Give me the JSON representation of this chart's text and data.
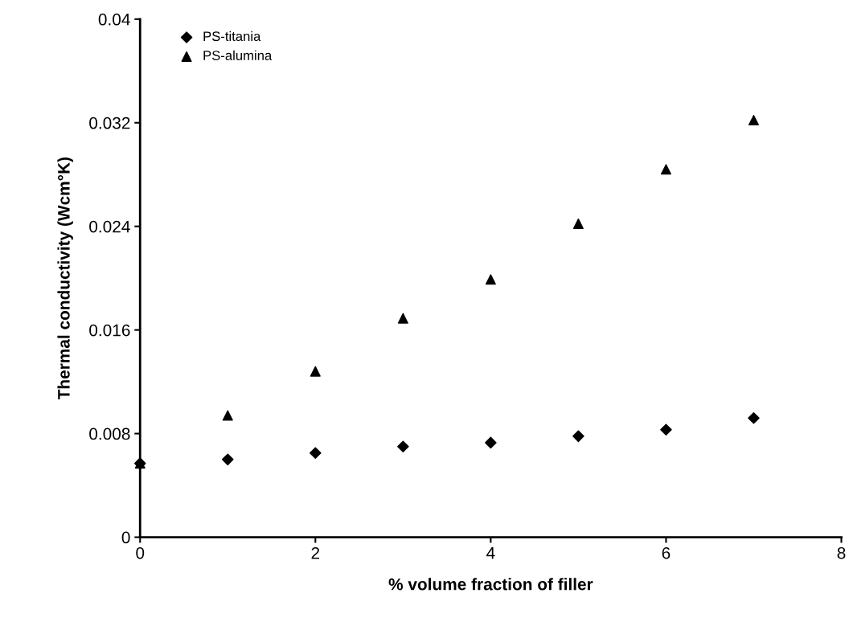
{
  "chart_data": {
    "type": "scatter",
    "xlabel": "% volume fraction of filler",
    "ylabel": "Thermal conductivity (Wcm°K)",
    "x": [
      0,
      1,
      2,
      3,
      4,
      5,
      6,
      7
    ],
    "series": [
      {
        "name": "PS-titania",
        "color": "#000000",
        "marker": "diamond",
        "values": [
          0.0057,
          0.006,
          0.0065,
          0.007,
          0.0073,
          0.0078,
          0.0083,
          0.0092
        ]
      },
      {
        "name": "PS-alumina",
        "color": "#000000",
        "marker": "triangle",
        "values": [
          0.0057,
          0.0094,
          0.0128,
          0.0169,
          0.0199,
          0.0242,
          0.0284,
          0.0322
        ]
      }
    ],
    "xlim": [
      0,
      8
    ],
    "xticks": [
      0,
      2,
      4,
      6,
      8
    ],
    "ylim": [
      0,
      0.04
    ],
    "yticks": [
      0,
      0.008,
      0.016,
      0.024,
      0.032,
      0.04
    ],
    "grid": false,
    "legend": "top left"
  }
}
